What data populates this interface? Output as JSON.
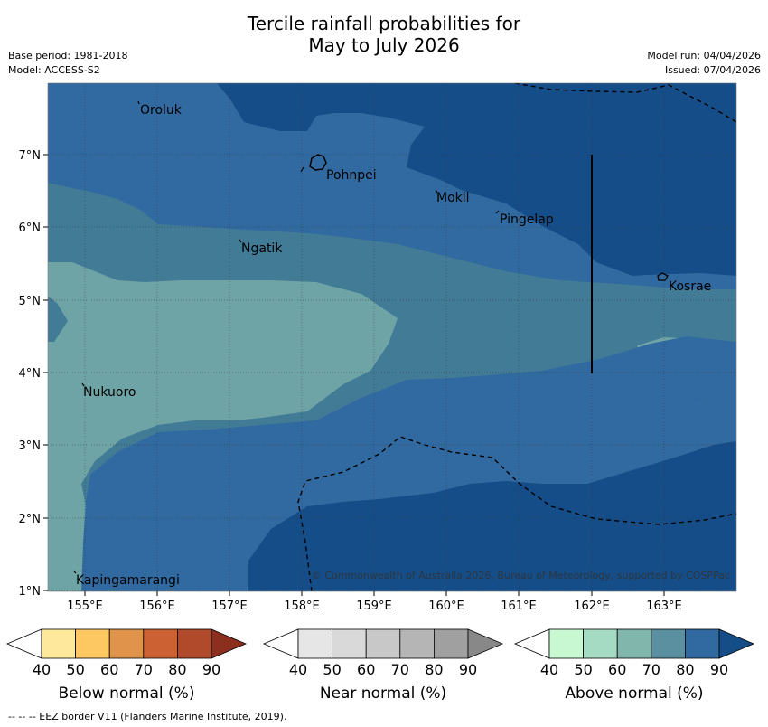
{
  "title": {
    "line1": "Tercile rainfall probabilities for",
    "line2": "May to July 2026"
  },
  "meta": {
    "base_period": "Base period: 1981-2018",
    "model": "Model: ACCESS-S2",
    "model_run": "Model run: 04/04/2026",
    "issued": "Issued: 07/04/2026"
  },
  "map": {
    "lat_labels": [
      "7°N",
      "6°N",
      "5°N",
      "4°N",
      "3°N",
      "2°N",
      "1°N"
    ],
    "lon_labels": [
      "155°E",
      "156°E",
      "157°E",
      "158°E",
      "159°E",
      "160°E",
      "161°E",
      "162°E",
      "163°E"
    ],
    "places": {
      "oroluk": "Oroluk",
      "pohnpei": "Pohnpei",
      "mokil": "Mokil",
      "pingelap": "Pingelap",
      "ngatik": "Ngatik",
      "kosrae": "Kosrae",
      "nukuoro": "Nukuoro",
      "kapingamarangi": "Kapingamarangi"
    },
    "copyright": "© Commonwealth of Australia 2026, Bureau of Meteorology, supported by COSPPac",
    "colors": {
      "above_50": "#a6dbc3",
      "above_60": "#6fa4a6",
      "above_70": "#427b96",
      "above_80": "#316aa0",
      "above_90": "#144d87"
    }
  },
  "legend": {
    "below": {
      "label": "Below normal (%)",
      "ticks": [
        "40",
        "50",
        "60",
        "70",
        "80",
        "90"
      ],
      "colors": [
        "#ffffff",
        "#fee89b",
        "#fdc862",
        "#e0944b",
        "#cc6133",
        "#b04a2a",
        "#8c2f1e"
      ]
    },
    "near": {
      "label": "Near normal (%)",
      "ticks": [
        "40",
        "50",
        "60",
        "70",
        "80",
        "90"
      ],
      "colors": [
        "#ffffff",
        "#e6e6e6",
        "#d9d9d9",
        "#c8c8c8",
        "#b5b5b5",
        "#a0a0a0",
        "#888888"
      ]
    },
    "above": {
      "label": "Above normal (%)",
      "ticks": [
        "40",
        "50",
        "60",
        "70",
        "80",
        "90"
      ],
      "colors": [
        "#ffffff",
        "#c8f8d2",
        "#a6dbc3",
        "#80b6ab",
        "#5a90a0",
        "#316aa0",
        "#144d87"
      ]
    }
  },
  "footnote": "--  --  -- EEZ border V11 (Flanders Marine Institute, 2019)."
}
